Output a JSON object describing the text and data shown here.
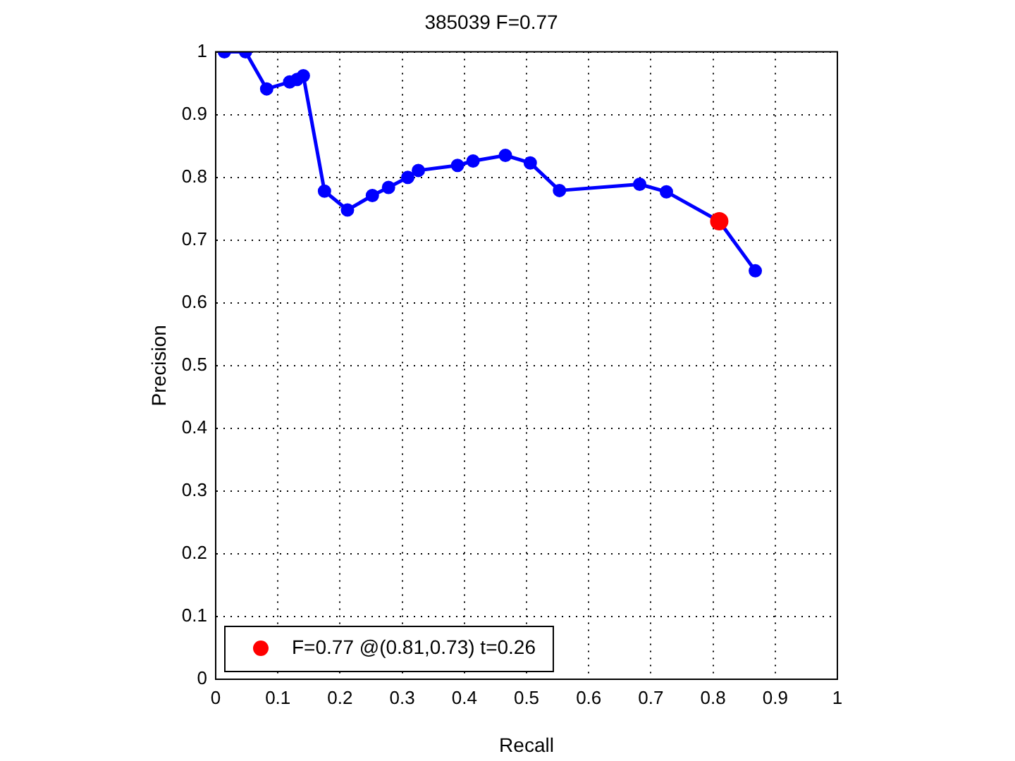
{
  "chart_data": {
    "type": "line",
    "title": "385039 F=0.77",
    "xlabel": "Recall",
    "ylabel": "Precision",
    "xlim": [
      0,
      1
    ],
    "ylim": [
      0,
      1
    ],
    "xticks": [
      0,
      0.1,
      0.2,
      0.3,
      0.4,
      0.5,
      0.6,
      0.7,
      0.8,
      0.9,
      1
    ],
    "yticks": [
      0,
      0.1,
      0.2,
      0.3,
      0.4,
      0.5,
      0.6,
      0.7,
      0.8,
      0.9,
      1
    ],
    "grid": true,
    "legend": "bottom left",
    "marker": "circle",
    "line_style": "solid",
    "series": [
      {
        "color": "#0000ff",
        "x": [
          0.014,
          0.048,
          0.082,
          0.119,
          0.131,
          0.141,
          0.175,
          0.212,
          0.252,
          0.278,
          0.309,
          0.326,
          0.389,
          0.414,
          0.466,
          0.506,
          0.553,
          0.682,
          0.725,
          0.81,
          0.868
        ],
        "values": [
          1.0,
          1.0,
          0.941,
          0.952,
          0.956,
          0.962,
          0.778,
          0.748,
          0.771,
          0.784,
          0.8,
          0.811,
          0.819,
          0.826,
          0.835,
          0.823,
          0.779,
          0.789,
          0.777,
          0.73,
          0.651
        ]
      },
      {
        "type": "scatter",
        "name": "F=0.77 @(0.81,0.73) t=0.26",
        "color": "#ff0000",
        "x": [
          0.81
        ],
        "values": [
          0.73
        ]
      }
    ]
  }
}
